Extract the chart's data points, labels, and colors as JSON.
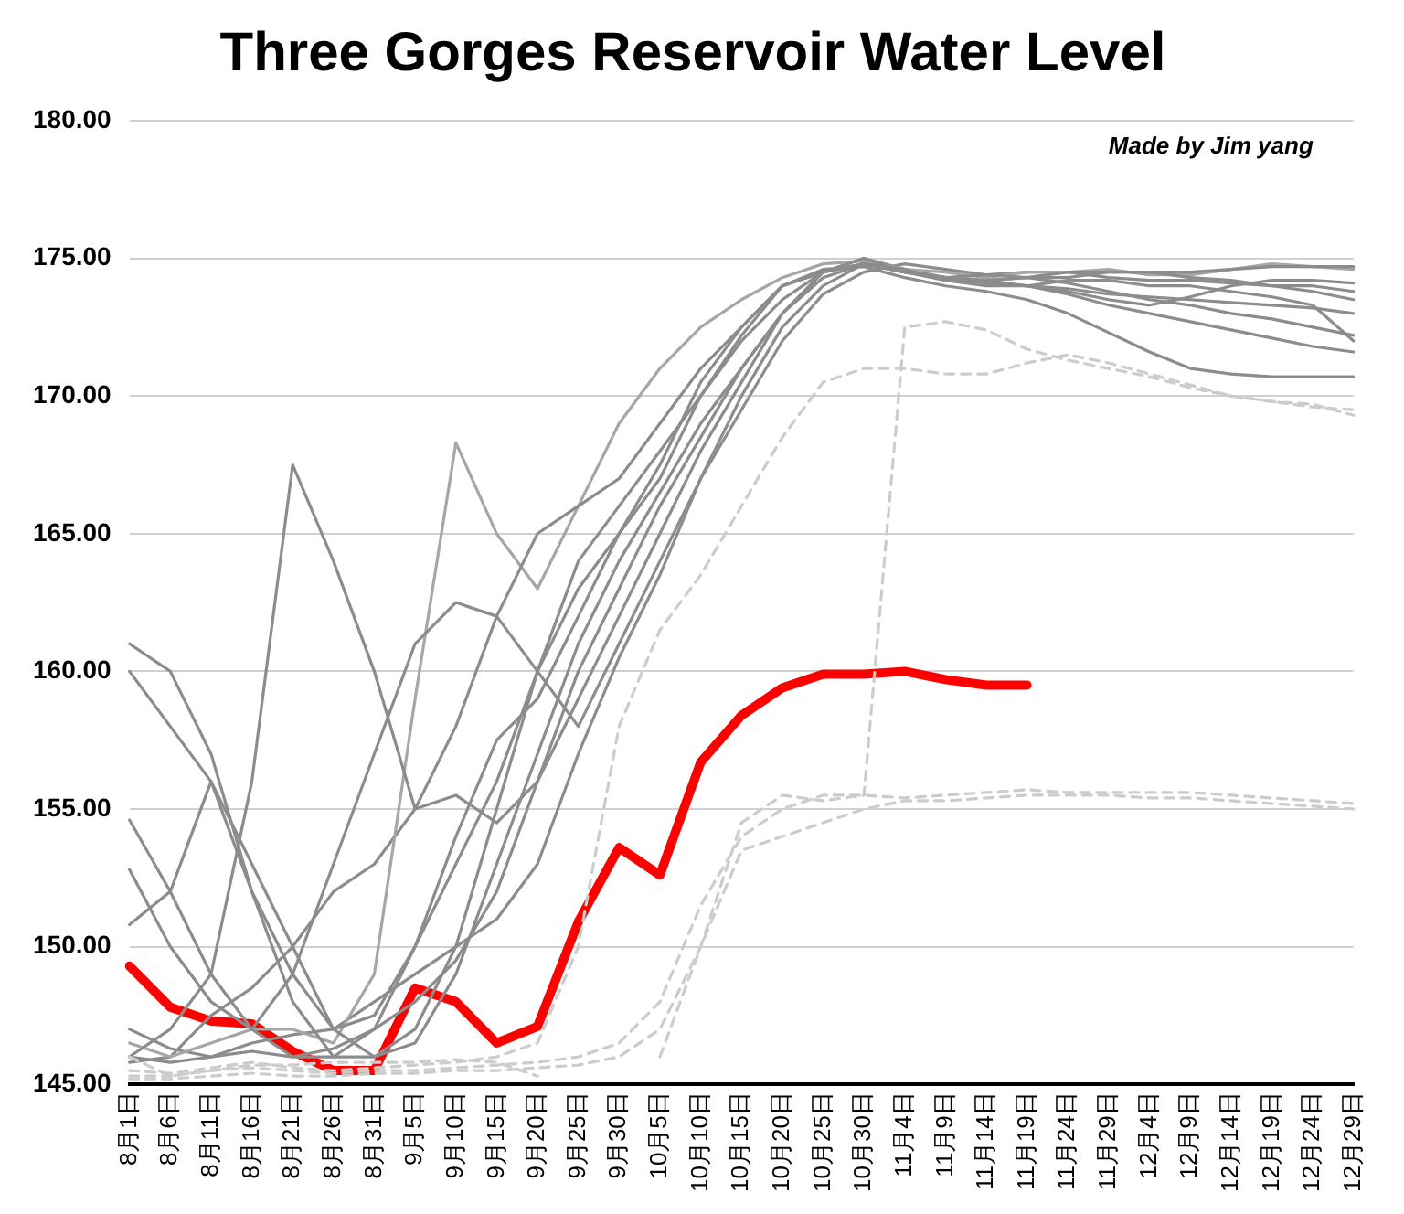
{
  "chart_data": {
    "type": "line",
    "title": "Three Gorges Reservoir Water Level",
    "annotations": [
      "Made by Jim yang"
    ],
    "categories": [
      "8月1日",
      "8月6日",
      "8月11日",
      "8月16日",
      "8月21日",
      "8月26日",
      "8月31日",
      "9月5日",
      "9月10日",
      "9月15日",
      "9月20日",
      "9月25日",
      "9月30日",
      "10月5日",
      "10月10日",
      "10月15日",
      "10月20日",
      "10月25日",
      "10月30日",
      "11月4日",
      "11月9日",
      "11月14日",
      "11月19日",
      "11月24日",
      "11月29日",
      "12月4日",
      "12月9日",
      "12月14日",
      "12月19日",
      "12月24日",
      "12月29日"
    ],
    "ylim": [
      145,
      180
    ],
    "yticks": [
      {
        "value": 145,
        "label": "145.00"
      },
      {
        "value": 150,
        "label": "150.00"
      },
      {
        "value": 155,
        "label": "155.00"
      },
      {
        "value": 160,
        "label": "160.00"
      },
      {
        "value": 165,
        "label": "165.00"
      },
      {
        "value": 170,
        "label": "170.00"
      },
      {
        "value": 175,
        "label": "175.00"
      },
      {
        "value": 180,
        "label": "180.00"
      }
    ],
    "grid": "y",
    "legend": false,
    "marker": "none",
    "series": [
      {
        "color": "#cccccc",
        "line_style": "dashed",
        "values": [
          146.0,
          145.3,
          145.5,
          145.7,
          145.7,
          145.8,
          145.8,
          145.8,
          145.9,
          145.8,
          145.3,
          null,
          null,
          146.0,
          150.0,
          154.5,
          155.5,
          155.3,
          155.5,
          172.5,
          172.7,
          172.4,
          171.7,
          171.3,
          171.0,
          170.7,
          170.3,
          170.0,
          169.8,
          169.6,
          169.5
        ]
      },
      {
        "color": "#cccccc",
        "line_style": "dashed",
        "values": [
          145.5,
          145.4,
          145.6,
          145.8,
          145.6,
          145.5,
          145.6,
          145.7,
          145.8,
          146.0,
          146.5,
          150.0,
          158.0,
          161.5,
          163.5,
          166.0,
          168.5,
          170.5,
          171.0,
          171.0,
          170.8,
          170.8,
          171.2,
          171.5,
          171.2,
          170.8,
          170.4,
          170.0,
          169.8,
          169.7,
          169.3
        ]
      },
      {
        "color": "#cccccc",
        "line_style": "dashed",
        "values": [
          145.3,
          145.3,
          145.5,
          145.6,
          145.5,
          145.4,
          145.5,
          145.5,
          145.6,
          145.7,
          145.8,
          146.0,
          146.5,
          148.0,
          151.5,
          154.0,
          155.0,
          155.5,
          155.5,
          155.4,
          155.5,
          155.6,
          155.7,
          155.6,
          155.6,
          155.6,
          155.6,
          155.5,
          155.4,
          155.3,
          155.2
        ]
      },
      {
        "color": "#cccccc",
        "line_style": "dashed",
        "values": [
          145.2,
          145.2,
          145.3,
          145.4,
          145.3,
          145.3,
          145.4,
          145.4,
          145.5,
          145.5,
          145.6,
          145.7,
          146.0,
          147.0,
          150.0,
          153.5,
          154.0,
          154.5,
          155.0,
          155.3,
          155.3,
          155.4,
          155.5,
          155.5,
          155.5,
          155.4,
          155.4,
          155.3,
          155.2,
          155.1,
          155.0
        ]
      },
      {
        "color": "#8c8c8c",
        "line_style": "solid",
        "values": [
          146.0,
          147.0,
          149.0,
          156.0,
          167.5,
          164.0,
          160.0,
          155.0,
          158.0,
          162.0,
          165.0,
          166.0,
          167.0,
          169.0,
          171.0,
          172.5,
          174.0,
          174.5,
          175.0,
          174.5,
          174.3,
          174.2,
          174.3,
          174.5,
          174.5,
          174.5,
          174.5,
          174.6,
          174.7,
          174.7,
          174.7
        ]
      },
      {
        "color": "#8c8c8c",
        "line_style": "solid",
        "values": [
          161.0,
          160.0,
          157.0,
          152.0,
          148.0,
          146.0,
          146.0,
          147.0,
          150.0,
          155.0,
          160.0,
          164.0,
          166.0,
          168.0,
          170.0,
          172.0,
          173.5,
          174.5,
          174.8,
          174.5,
          174.2,
          174.2,
          174.3,
          174.3,
          174.5,
          174.5,
          174.3,
          174.2,
          174.0,
          173.8,
          173.5
        ]
      },
      {
        "color": "#8c8c8c",
        "line_style": "solid",
        "values": [
          160.0,
          158.0,
          156.0,
          153.0,
          150.0,
          147.0,
          146.0,
          146.5,
          149.0,
          153.0,
          157.0,
          161.0,
          164.0,
          166.5,
          169.0,
          171.0,
          173.0,
          174.5,
          174.8,
          174.5,
          174.3,
          174.4,
          174.3,
          174.1,
          173.8,
          173.5,
          173.3,
          173.0,
          172.8,
          172.5,
          172.2
        ]
      },
      {
        "color": "#8c8c8c",
        "line_style": "solid",
        "values": [
          154.6,
          152.0,
          149.0,
          147.0,
          146.0,
          146.0,
          147.0,
          150.0,
          153.0,
          156.0,
          160.0,
          163.0,
          165.0,
          167.5,
          170.5,
          172.5,
          174.0,
          174.6,
          174.7,
          174.3,
          174.0,
          173.8,
          173.5,
          173.0,
          172.3,
          171.6,
          171.0,
          170.8,
          170.7,
          170.7,
          170.7
        ]
      },
      {
        "color": "#8c8c8c",
        "line_style": "solid",
        "values": [
          152.8,
          150.0,
          148.0,
          147.0,
          149.0,
          153.0,
          157.0,
          161.0,
          162.5,
          162.0,
          160.0,
          158.0,
          161.0,
          164.0,
          167.0,
          170.0,
          172.5,
          174.0,
          174.8,
          174.6,
          174.2,
          174.0,
          174.0,
          174.2,
          174.2,
          174.0,
          174.0,
          173.8,
          173.6,
          173.3,
          172.0
        ]
      },
      {
        "color": "#8c8c8c",
        "line_style": "solid",
        "values": [
          150.8,
          152.0,
          156.0,
          152.0,
          149.0,
          147.0,
          147.5,
          150.0,
          154.0,
          157.5,
          159.0,
          162.0,
          165.0,
          167.0,
          170.0,
          172.2,
          174.0,
          174.5,
          174.8,
          174.5,
          174.3,
          174.1,
          174.0,
          173.8,
          173.5,
          173.3,
          173.6,
          174.0,
          174.2,
          174.2,
          174.1
        ]
      },
      {
        "color": "#a6a6a6",
        "line_style": "solid",
        "values": [
          146.5,
          146.0,
          146.5,
          147.0,
          147.0,
          146.5,
          149.0,
          159.0,
          168.3,
          165.0,
          163.0,
          166.0,
          169.0,
          171.0,
          172.5,
          173.5,
          174.3,
          174.8,
          174.9,
          174.6,
          174.5,
          174.3,
          174.5,
          174.5,
          174.6,
          174.4,
          174.4,
          174.6,
          174.8,
          174.7,
          174.6
        ]
      },
      {
        "color": "#8c8c8c",
        "line_style": "solid",
        "values": [
          147.0,
          146.3,
          146.0,
          146.2,
          146.0,
          146.3,
          147.0,
          148.0,
          149.5,
          152.0,
          156.0,
          160.0,
          163.0,
          166.0,
          168.5,
          171.0,
          173.0,
          174.3,
          174.8,
          174.5,
          174.3,
          174.1,
          174.0,
          173.7,
          173.3,
          173.0,
          172.7,
          172.4,
          172.1,
          171.8,
          171.6
        ]
      },
      {
        "color": "#8c8c8c",
        "line_style": "solid",
        "values": [
          146.0,
          145.8,
          146.0,
          146.5,
          146.8,
          147.0,
          148.0,
          149.0,
          150.0,
          151.0,
          153.0,
          157.0,
          160.5,
          163.5,
          167.0,
          169.5,
          172.0,
          173.7,
          174.5,
          174.8,
          174.6,
          174.4,
          174.5,
          174.5,
          174.3,
          174.2,
          174.2,
          174.1,
          174.0,
          174.0,
          173.8
        ]
      },
      {
        "color": "#8c8c8c",
        "line_style": "solid",
        "values": [
          145.8,
          146.0,
          147.5,
          148.5,
          150.0,
          152.0,
          153.0,
          155.0,
          155.5,
          154.5,
          156.0,
          159.0,
          162.0,
          165.0,
          168.0,
          170.5,
          173.0,
          174.5,
          175.0,
          174.6,
          174.3,
          174.2,
          174.0,
          173.9,
          173.7,
          173.6,
          173.5,
          173.4,
          173.3,
          173.2,
          173.0
        ]
      },
      {
        "color": "#ff0000",
        "line_style": "solid",
        "values": [
          149.3,
          147.8,
          147.3,
          147.2,
          146.2,
          145.5,
          145.5,
          148.5,
          148.0,
          146.5,
          147.1,
          150.9,
          153.6,
          152.6,
          156.7,
          158.4,
          159.4,
          159.9,
          159.9,
          160.0,
          159.7,
          159.5,
          159.5,
          null,
          null,
          null,
          null,
          null,
          null,
          null,
          null
        ]
      }
    ]
  }
}
